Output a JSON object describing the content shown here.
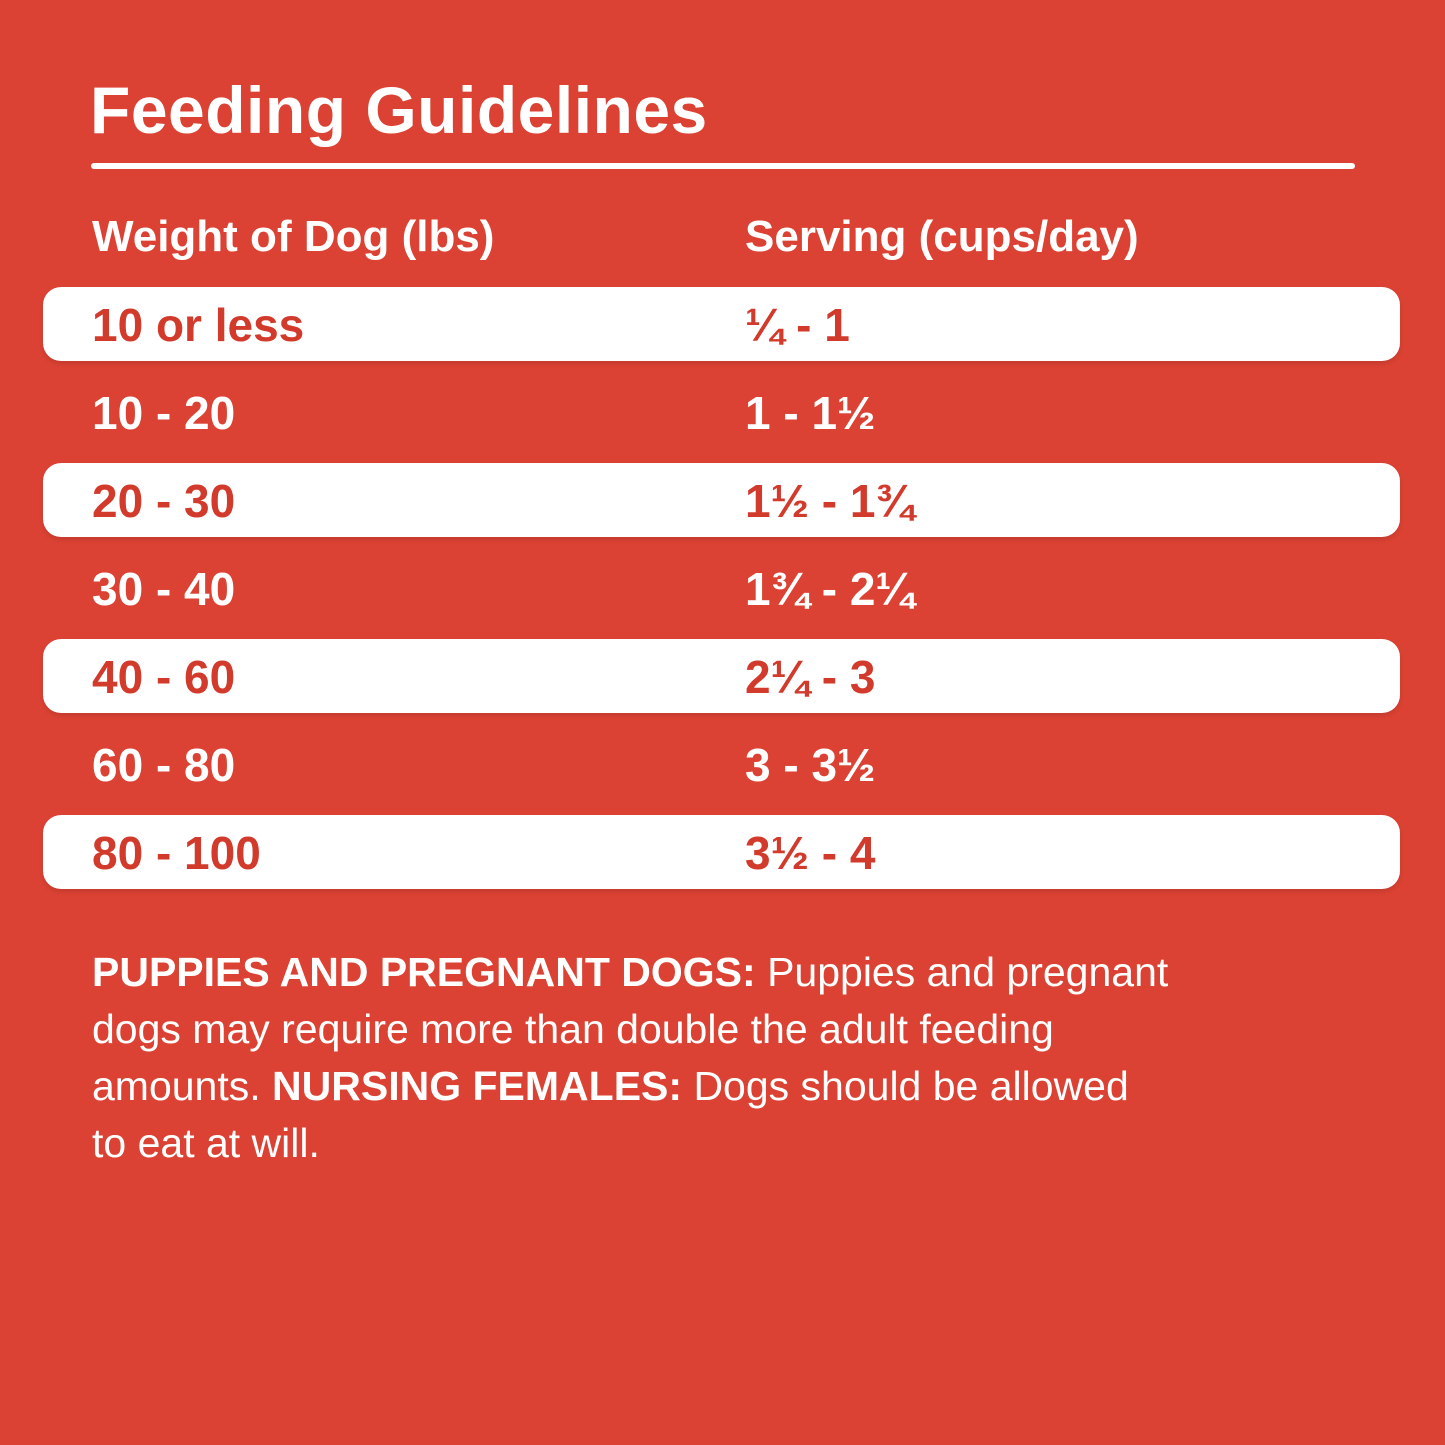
{
  "title": "Feeding Guidelines",
  "table": {
    "columns": [
      "Weight of Dog (lbs)",
      "Serving (cups/day)"
    ],
    "rows": [
      {
        "weight": "10 or less",
        "serving": "¼ - 1",
        "highlight": true
      },
      {
        "weight": "10 - 20",
        "serving": "1 - 1½",
        "highlight": false
      },
      {
        "weight": "20 - 30",
        "serving": "1½ - 1¾",
        "highlight": true
      },
      {
        "weight": "30 - 40",
        "serving": "1¾ - 2¼",
        "highlight": false
      },
      {
        "weight": "40 - 60",
        "serving": "2¼ - 3",
        "highlight": true
      },
      {
        "weight": "60 - 80",
        "serving": "3 - 3½",
        "highlight": false
      },
      {
        "weight": "80 - 100",
        "serving": "3½ - 4",
        "highlight": true
      }
    ]
  },
  "footer": {
    "lines": [
      {
        "pre": "",
        "bold": "PUPPIES AND PREGNANT DOGS:",
        "rest": " Puppies and pregnant"
      },
      {
        "pre": "",
        "bold": "",
        "rest": "dogs may require more than double the adult feeding"
      },
      {
        "pre": "amounts. ",
        "bold": "NURSING FEMALES:",
        "rest": " Dogs should be allowed"
      },
      {
        "pre": "",
        "bold": "",
        "rest": "to eat at will."
      }
    ]
  },
  "colors": {
    "background": "#DB4233",
    "pill": "#FFFFFF",
    "text_on_red": "#FFFFFF",
    "text_on_pill": "#D23A2B"
  }
}
